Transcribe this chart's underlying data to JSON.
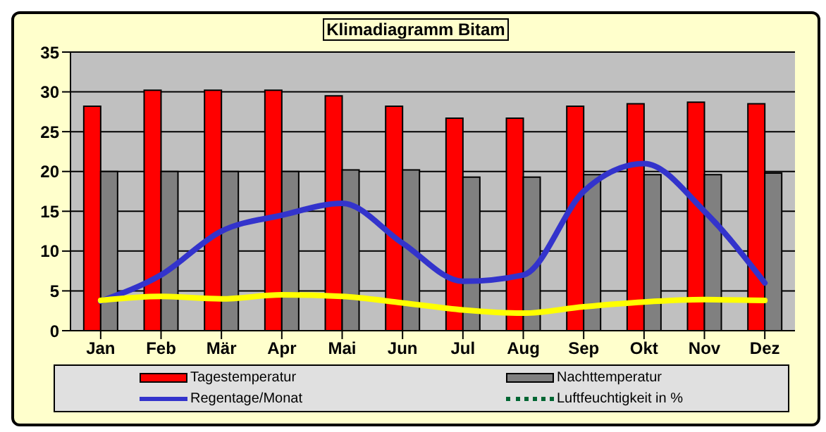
{
  "chart_data": {
    "type": "bar",
    "title": "Klimadiagramm Bitam",
    "categories": [
      "Jan",
      "Feb",
      "Mär",
      "Apr",
      "Mai",
      "Jun",
      "Jul",
      "Aug",
      "Sep",
      "Okt",
      "Nov",
      "Dez"
    ],
    "series": [
      {
        "name": "Tagestemperatur",
        "color": "#ff0000",
        "values": [
          28.2,
          30.2,
          30.2,
          30.2,
          29.5,
          28.2,
          26.7,
          26.7,
          28.2,
          28.5,
          28.7,
          28.5
        ]
      },
      {
        "name": "Nachttemperatur",
        "color": "#808080",
        "values": [
          20,
          20,
          20,
          20,
          20.2,
          20.2,
          19.3,
          19.3,
          19.6,
          19.6,
          19.6,
          19.8
        ]
      },
      {
        "name": "Regentage/Monat",
        "type": "line",
        "color": "#3333cc",
        "values": [
          3.7,
          7,
          12.5,
          14.5,
          16,
          11,
          6.2,
          7,
          17.5,
          21,
          15,
          6
        ]
      },
      {
        "name": "Luftfeuchtigkeit in %",
        "type": "line",
        "color": "#006633",
        "line_style": "dotted",
        "values": [
          null,
          null,
          null,
          null,
          null,
          null,
          null,
          null,
          null,
          null,
          null,
          null
        ]
      },
      {
        "type": "line",
        "color": "#ffff00",
        "values": [
          3.8,
          4.3,
          4,
          4.5,
          4.3,
          3.5,
          2.6,
          2.2,
          3,
          3.6,
          3.9,
          3.8
        ]
      }
    ],
    "ylim": [
      0,
      35
    ],
    "yticks": [
      0,
      5,
      10,
      15,
      20,
      25,
      30,
      35
    ],
    "grid": "y",
    "legend": "bottom",
    "marker": "none"
  }
}
